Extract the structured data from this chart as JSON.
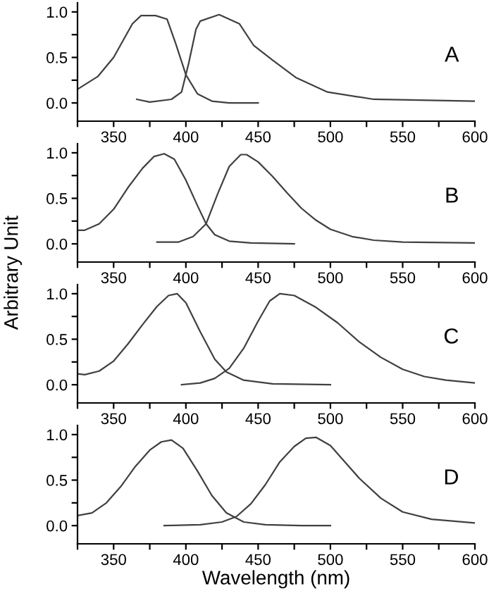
{
  "chart_data": [
    {
      "type": "line",
      "annotations": [
        "A"
      ],
      "xlim": [
        325,
        600
      ],
      "ylim": [
        -0.2,
        1.1
      ],
      "grid": false,
      "legend": false,
      "marker": "none",
      "line_style": "solid",
      "xticks": [
        {
          "value": 325,
          "label": null
        },
        350,
        {
          "value": 375,
          "label": null
        },
        400,
        {
          "value": 425,
          "label": null
        },
        450,
        {
          "value": 475,
          "label": null
        },
        500,
        {
          "value": 525,
          "label": null
        },
        550,
        {
          "value": 575,
          "label": null
        },
        600
      ],
      "yticks": [
        {
          "value": 0,
          "label": "0.0"
        },
        {
          "value": 0.25,
          "label": null
        },
        {
          "value": 0.5,
          "label": "0.5"
        },
        {
          "value": 0.75,
          "label": null
        },
        {
          "value": 1,
          "label": "1.0"
        }
      ],
      "series": [
        {
          "color": "#404040",
          "x": [
            325,
            339,
            350,
            363,
            369,
            379,
            387,
            393,
            400,
            408,
            418,
            430,
            450
          ],
          "values": [
            0.15,
            0.29,
            0.5,
            0.87,
            0.96,
            0.96,
            0.92,
            0.65,
            0.31,
            0.1,
            0.02,
            0.0,
            0.0
          ]
        },
        {
          "color": "#404040",
          "x": [
            366,
            375,
            390,
            397,
            402,
            407,
            410,
            423,
            437,
            447,
            460,
            476,
            498,
            530,
            600
          ],
          "values": [
            0.04,
            0.01,
            0.04,
            0.12,
            0.44,
            0.81,
            0.9,
            0.97,
            0.87,
            0.63,
            0.47,
            0.28,
            0.12,
            0.04,
            0.02
          ]
        }
      ]
    },
    {
      "type": "line",
      "annotations": [
        "B"
      ],
      "xlim": [
        325,
        600
      ],
      "ylim": [
        -0.2,
        1.1
      ],
      "grid": false,
      "legend": false,
      "marker": "none",
      "line_style": "solid",
      "xticks": [
        {
          "value": 325,
          "label": null
        },
        350,
        {
          "value": 375,
          "label": null
        },
        400,
        {
          "value": 425,
          "label": null
        },
        450,
        {
          "value": 475,
          "label": null
        },
        500,
        {
          "value": 525,
          "label": null
        },
        550,
        {
          "value": 575,
          "label": null
        },
        600
      ],
      "yticks": [
        {
          "value": 0,
          "label": "0.0"
        },
        {
          "value": 0.25,
          "label": null
        },
        {
          "value": 0.5,
          "label": "0.5"
        },
        {
          "value": 0.75,
          "label": null
        },
        {
          "value": 1,
          "label": "1.0"
        }
      ],
      "series": [
        {
          "color": "#404040",
          "x": [
            325,
            330,
            340,
            350,
            360,
            370,
            378,
            385,
            392,
            400,
            408,
            414,
            420,
            430,
            445,
            475
          ],
          "values": [
            0.15,
            0.15,
            0.22,
            0.38,
            0.62,
            0.83,
            0.96,
            0.99,
            0.93,
            0.7,
            0.42,
            0.22,
            0.1,
            0.03,
            0.01,
            0.0
          ]
        },
        {
          "color": "#404040",
          "x": [
            380,
            395,
            405,
            414,
            422,
            430,
            438,
            442,
            450,
            460,
            470,
            480,
            490,
            500,
            515,
            530,
            550,
            600
          ],
          "values": [
            0.02,
            0.02,
            0.08,
            0.22,
            0.55,
            0.85,
            0.98,
            0.98,
            0.9,
            0.74,
            0.56,
            0.39,
            0.26,
            0.16,
            0.08,
            0.04,
            0.02,
            0.01
          ]
        }
      ]
    },
    {
      "type": "line",
      "annotations": [
        "C"
      ],
      "ylabel": "Arbitrary Unit",
      "xlim": [
        325,
        600
      ],
      "ylim": [
        -0.2,
        1.1
      ],
      "grid": false,
      "legend": false,
      "marker": "none",
      "line_style": "solid",
      "xticks": [
        {
          "value": 325,
          "label": null
        },
        350,
        {
          "value": 375,
          "label": null
        },
        400,
        {
          "value": 425,
          "label": null
        },
        450,
        {
          "value": 475,
          "label": null
        },
        500,
        {
          "value": 525,
          "label": null
        },
        550,
        {
          "value": 575,
          "label": null
        },
        600
      ],
      "yticks": [
        {
          "value": 0,
          "label": "0.0"
        },
        {
          "value": 0.25,
          "label": null
        },
        {
          "value": 0.5,
          "label": "0.5"
        },
        {
          "value": 0.75,
          "label": null
        },
        {
          "value": 1,
          "label": "1.0"
        }
      ],
      "series": [
        {
          "color": "#404040",
          "x": [
            325,
            330,
            340,
            350,
            360,
            370,
            380,
            388,
            394,
            400,
            410,
            420,
            428,
            440,
            460,
            500
          ],
          "values": [
            0.12,
            0.11,
            0.15,
            0.26,
            0.45,
            0.66,
            0.86,
            0.98,
            1.0,
            0.9,
            0.58,
            0.28,
            0.14,
            0.05,
            0.01,
            0.0
          ]
        },
        {
          "color": "#404040",
          "x": [
            397,
            410,
            420,
            430,
            440,
            450,
            458,
            465,
            475,
            490,
            505,
            520,
            535,
            550,
            565,
            580,
            600
          ],
          "values": [
            0.0,
            0.02,
            0.07,
            0.18,
            0.4,
            0.7,
            0.92,
            1.0,
            0.98,
            0.85,
            0.68,
            0.47,
            0.3,
            0.17,
            0.09,
            0.05,
            0.02
          ]
        }
      ]
    },
    {
      "type": "line",
      "annotations": [
        "D"
      ],
      "xlabel": "Wavelength (nm)",
      "xlim": [
        325,
        600
      ],
      "ylim": [
        -0.2,
        1.1
      ],
      "grid": false,
      "legend": false,
      "marker": "none",
      "line_style": "solid",
      "xticks": [
        {
          "value": 325,
          "label": null
        },
        350,
        {
          "value": 375,
          "label": null
        },
        400,
        {
          "value": 425,
          "label": null
        },
        450,
        {
          "value": 475,
          "label": null
        },
        500,
        {
          "value": 525,
          "label": null
        },
        550,
        {
          "value": 575,
          "label": null
        },
        600
      ],
      "yticks": [
        {
          "value": 0,
          "label": "0.0"
        },
        {
          "value": 0.25,
          "label": null
        },
        {
          "value": 0.5,
          "label": "0.5"
        },
        {
          "value": 0.75,
          "label": null
        },
        {
          "value": 1,
          "label": "1.0"
        }
      ],
      "series": [
        {
          "color": "#404040",
          "x": [
            325,
            335,
            345,
            355,
            365,
            375,
            383,
            390,
            398,
            408,
            418,
            428,
            440,
            455,
            480,
            500
          ],
          "values": [
            0.11,
            0.14,
            0.25,
            0.43,
            0.65,
            0.83,
            0.92,
            0.94,
            0.85,
            0.6,
            0.33,
            0.14,
            0.04,
            0.01,
            0.0,
            0.0
          ]
        },
        {
          "color": "#404040",
          "x": [
            385,
            410,
            425,
            435,
            445,
            455,
            465,
            475,
            483,
            490,
            500,
            510,
            520,
            535,
            550,
            570,
            600
          ],
          "values": [
            0.0,
            0.01,
            0.04,
            0.1,
            0.24,
            0.45,
            0.7,
            0.87,
            0.96,
            0.97,
            0.88,
            0.7,
            0.52,
            0.3,
            0.15,
            0.07,
            0.03
          ]
        }
      ]
    }
  ]
}
